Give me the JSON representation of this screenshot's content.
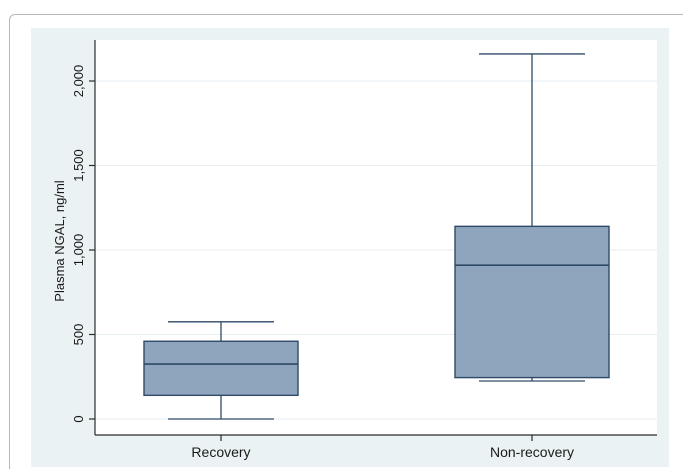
{
  "chart_data": {
    "type": "box",
    "title": "",
    "xlabel": "",
    "ylabel": "Plasma NGAL, ng/ml",
    "ylim": [
      -100,
      2250
    ],
    "yticks": [
      0,
      500,
      1000,
      1500,
      2000
    ],
    "ytick_labels": [
      "0",
      "500",
      "1,000",
      "1,500",
      "2,000"
    ],
    "categories": [
      "Recovery",
      "Non-recovery"
    ],
    "boxes": [
      {
        "category": "Recovery",
        "min": 0,
        "q1": 140,
        "median": 325,
        "q3": 460,
        "max": 575
      },
      {
        "category": "Non-recovery",
        "min": 225,
        "q1": 245,
        "median": 910,
        "q3": 1140,
        "max": 2160
      }
    ],
    "grid": true,
    "colors": {
      "box_fill": "#8fa4bd",
      "box_stroke": "#2e4a66",
      "plot_bg": "#ffffff",
      "outer_bg": "#eaf2f3",
      "grid": "#e6eef0"
    }
  }
}
